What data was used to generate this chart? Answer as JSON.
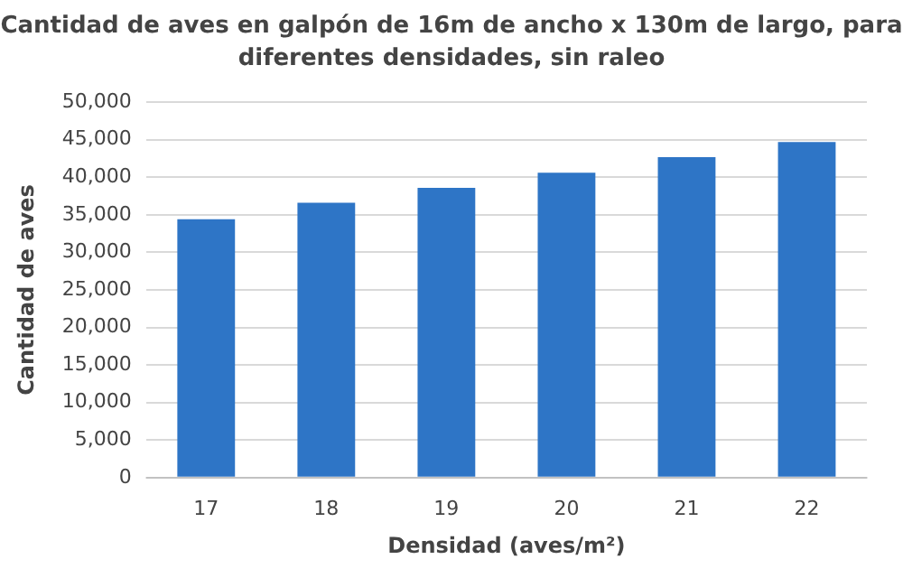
{
  "chart_data": {
    "type": "bar",
    "title": "Cantidad de aves en galpón de 16m de ancho x 130m de largo, para diferentes densidades, sin raleo",
    "xlabel": "Densidad (aves/m²)",
    "ylabel": "Cantidad de aves",
    "categories": [
      "17",
      "18",
      "19",
      "20",
      "21",
      "22"
    ],
    "values": [
      34400,
      36600,
      38600,
      40600,
      42700,
      44700
    ],
    "color": "#2e75c6",
    "ylim": [
      0,
      50000
    ],
    "yticks": [
      0,
      {
        "value": 5000,
        "label": "5,000"
      },
      {
        "value": 10000,
        "label": "10,000"
      },
      {
        "value": 15000,
        "label": "15,000"
      },
      {
        "value": 20000,
        "label": "20,000"
      },
      {
        "value": 25000,
        "label": "25,000"
      },
      {
        "value": 30000,
        "label": "30,000"
      },
      {
        "value": 35000,
        "label": "35,000"
      },
      {
        "value": 40000,
        "label": "40,000"
      },
      {
        "value": 45000,
        "label": "45,000"
      },
      {
        "value": 50000,
        "label": "50,000"
      }
    ],
    "grid": "y"
  }
}
